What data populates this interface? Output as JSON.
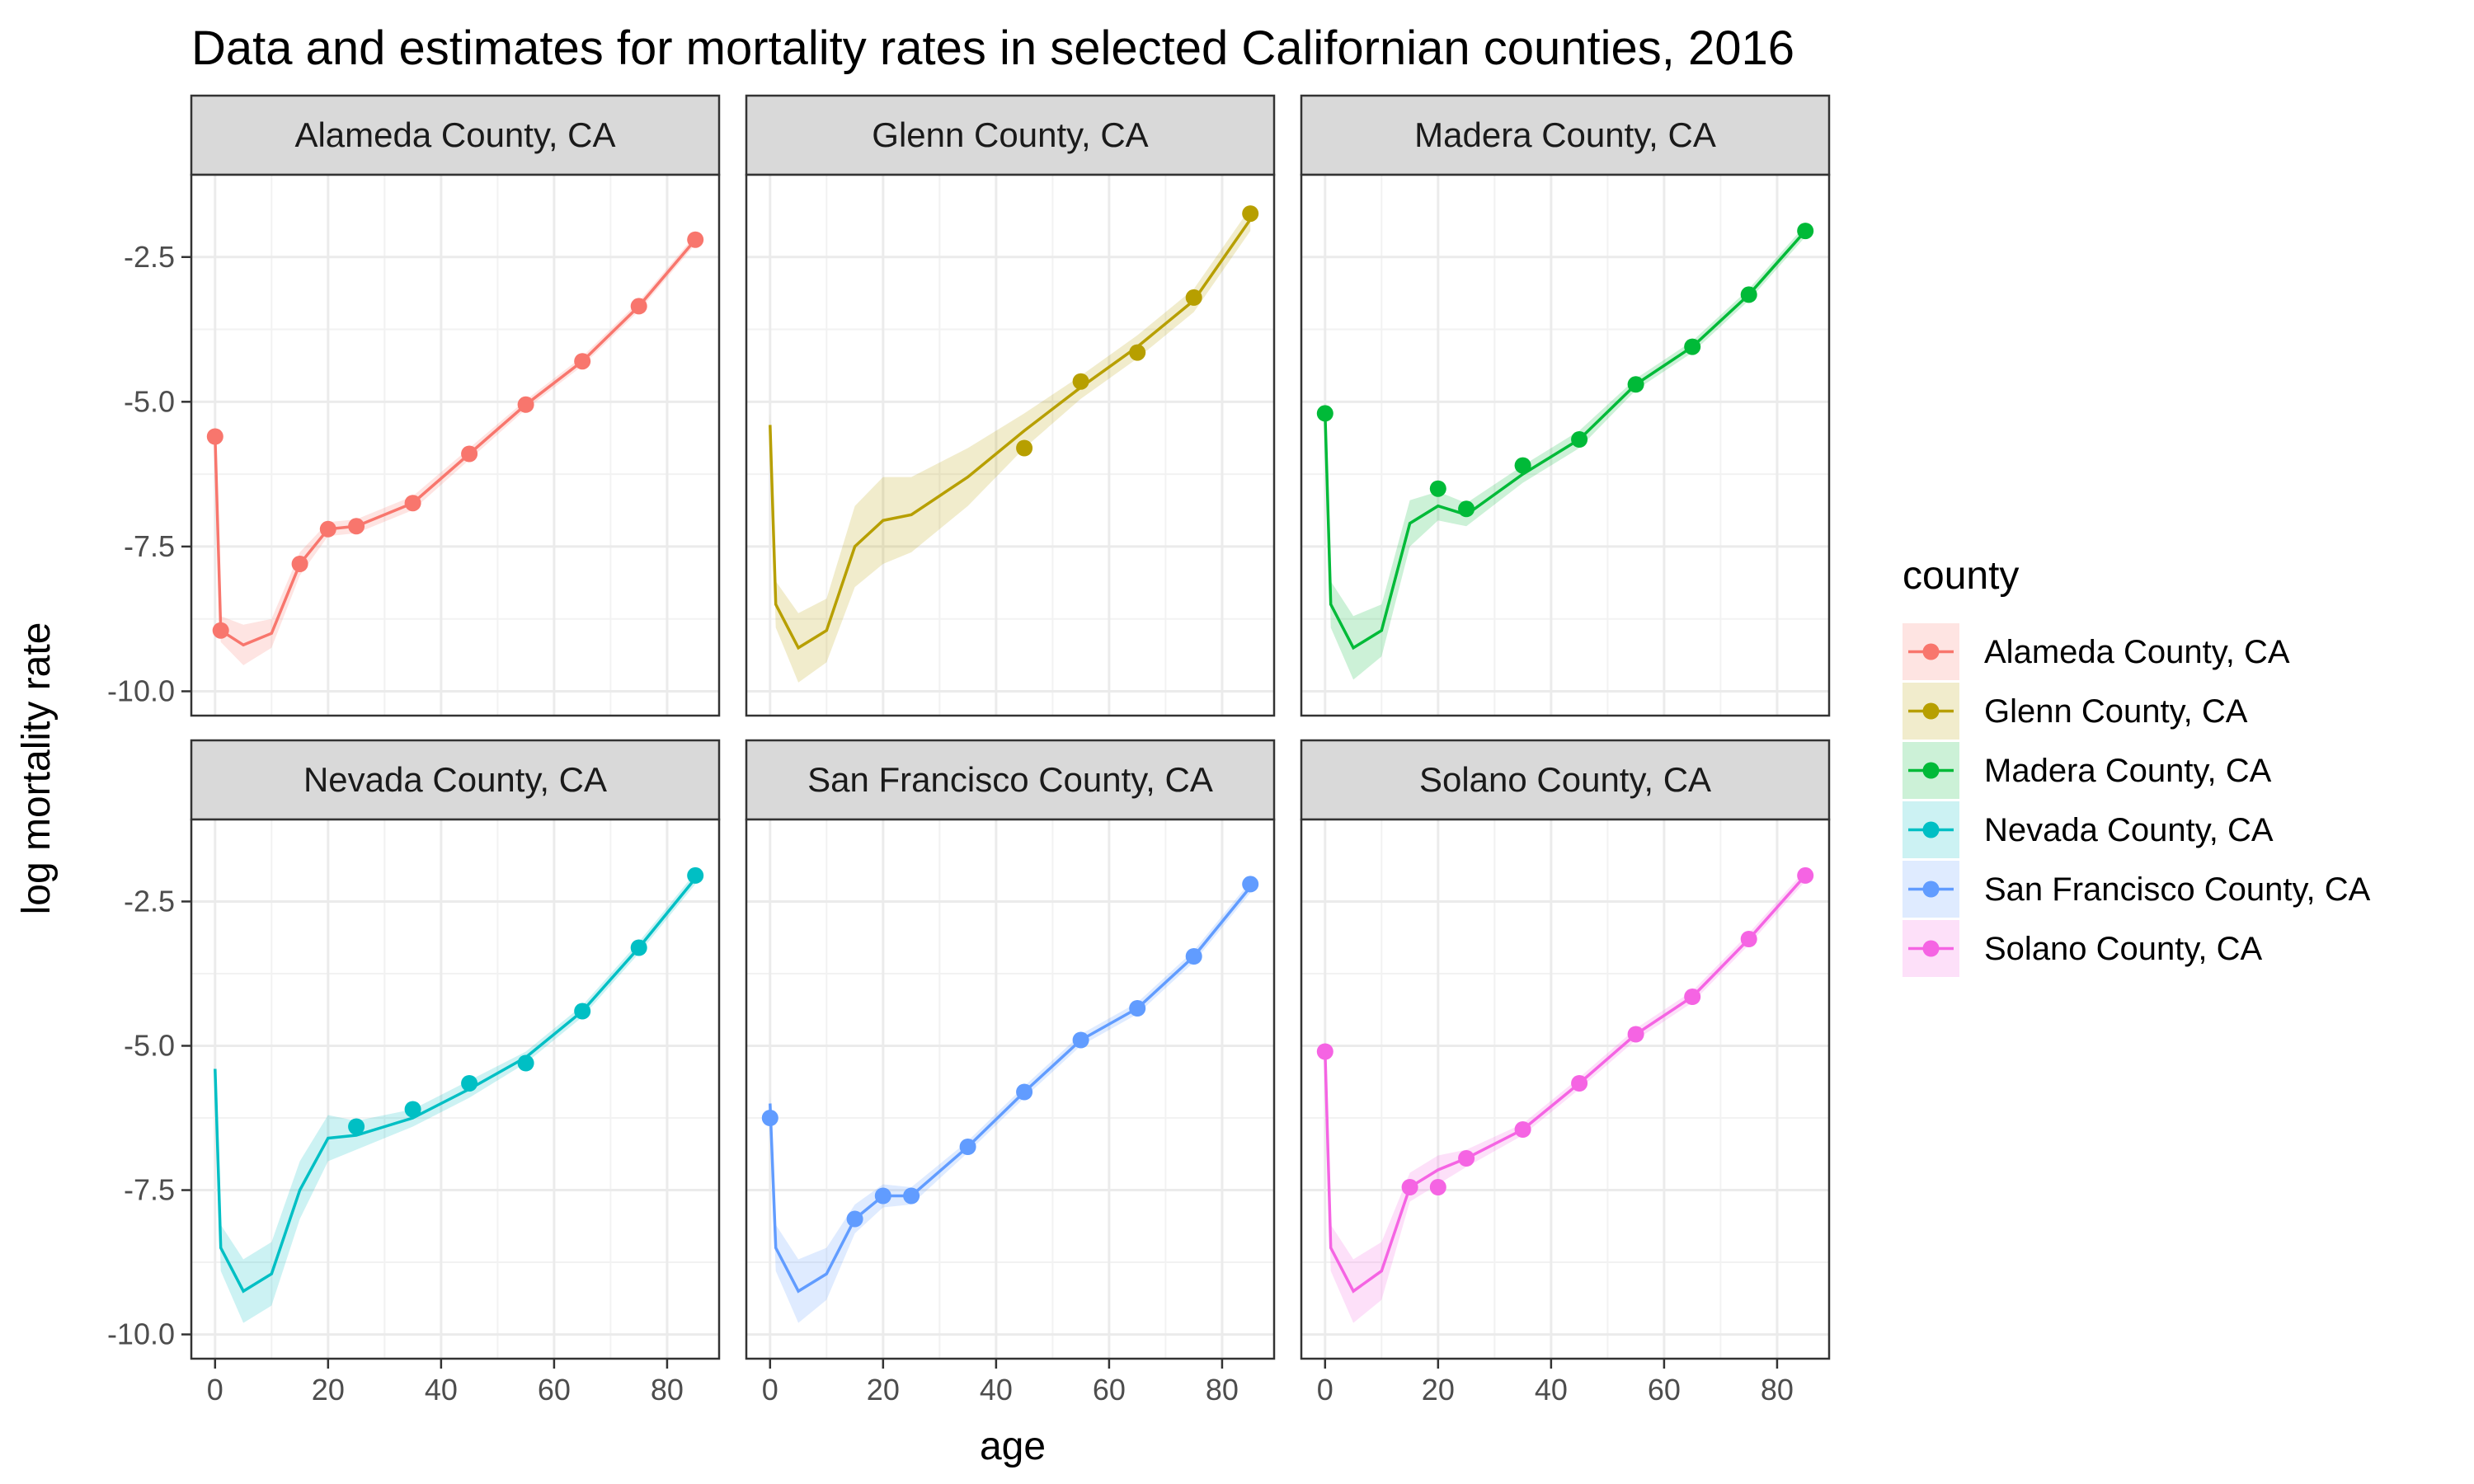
{
  "title": "Data and estimates for mortality rates in selected Californian counties, 2016",
  "chart_data": {
    "type": "line",
    "facet_by": "county",
    "xlabel": "age",
    "ylabel": "log mortality rate",
    "xlim": [
      0,
      85
    ],
    "ylim": [
      -10,
      -1.5
    ],
    "xticks": [
      0,
      20,
      40,
      60,
      80
    ],
    "yticks": [
      -10,
      -7.5,
      -5,
      -2.5
    ],
    "ytick_labels": [
      "-10.0",
      "-7.5",
      "-5.0",
      "-2.5"
    ],
    "grid": true,
    "legend": {
      "title": "county",
      "position": "right"
    },
    "estimate_ages": [
      0,
      1,
      5,
      10,
      15,
      20,
      25,
      35,
      45,
      55,
      65,
      75,
      85
    ],
    "series": [
      {
        "name": "Alameda County, CA",
        "color": "#F8766D",
        "estimate": [
          -5.6,
          -8.95,
          -9.2,
          -9.0,
          -7.8,
          -7.2,
          -7.15,
          -6.75,
          -5.9,
          -5.05,
          -4.3,
          -3.35,
          -2.2
        ],
        "lower": [
          -5.7,
          -9.15,
          -9.55,
          -9.25,
          -8.0,
          -7.32,
          -7.27,
          -6.87,
          -6.0,
          -5.13,
          -4.38,
          -3.43,
          -2.28
        ],
        "upper": [
          -5.5,
          -8.7,
          -8.85,
          -8.75,
          -7.6,
          -7.08,
          -7.03,
          -6.63,
          -5.8,
          -4.97,
          -4.22,
          -3.27,
          -2.12
        ],
        "observed": [
          [
            0,
            -5.6
          ],
          [
            1,
            -8.95
          ],
          [
            15,
            -7.8
          ],
          [
            20,
            -7.2
          ],
          [
            25,
            -7.15
          ],
          [
            35,
            -6.75
          ],
          [
            45,
            -5.9
          ],
          [
            55,
            -5.05
          ],
          [
            65,
            -4.3
          ],
          [
            75,
            -3.35
          ],
          [
            85,
            -2.2
          ]
        ]
      },
      {
        "name": "Glenn County, CA",
        "color": "#B79F00",
        "estimate": [
          -5.4,
          -8.5,
          -9.25,
          -8.95,
          -7.5,
          -7.05,
          -6.95,
          -6.3,
          -5.5,
          -4.75,
          -4.05,
          -3.25,
          -1.85
        ],
        "lower": [
          -5.6,
          -8.9,
          -9.85,
          -9.5,
          -8.2,
          -7.8,
          -7.6,
          -6.8,
          -5.8,
          -4.95,
          -4.25,
          -3.45,
          -2.05
        ],
        "upper": [
          -5.2,
          -8.1,
          -8.65,
          -8.4,
          -6.8,
          -6.3,
          -6.3,
          -5.8,
          -5.2,
          -4.55,
          -3.85,
          -3.05,
          -1.65
        ],
        "observed": [
          [
            45,
            -5.8
          ],
          [
            55,
            -4.65
          ],
          [
            65,
            -4.15
          ],
          [
            75,
            -3.2
          ],
          [
            85,
            -1.75
          ]
        ]
      },
      {
        "name": "Madera County, CA",
        "color": "#00BA38",
        "estimate": [
          -5.2,
          -8.5,
          -9.25,
          -8.95,
          -7.1,
          -6.8,
          -6.95,
          -6.25,
          -5.65,
          -4.7,
          -4.05,
          -3.15,
          -2.05
        ],
        "lower": [
          -5.3,
          -8.9,
          -9.8,
          -9.4,
          -7.5,
          -7.05,
          -7.15,
          -6.4,
          -5.8,
          -4.8,
          -4.15,
          -3.25,
          -2.15
        ],
        "upper": [
          -5.1,
          -8.1,
          -8.7,
          -8.5,
          -6.7,
          -6.55,
          -6.75,
          -6.1,
          -5.5,
          -4.6,
          -3.95,
          -3.05,
          -1.95
        ],
        "observed": [
          [
            0,
            -5.2
          ],
          [
            20,
            -6.5
          ],
          [
            25,
            -6.85
          ],
          [
            35,
            -6.1
          ],
          [
            45,
            -5.65
          ],
          [
            55,
            -4.7
          ],
          [
            65,
            -4.05
          ],
          [
            75,
            -3.15
          ],
          [
            85,
            -2.05
          ]
        ]
      },
      {
        "name": "Nevada County, CA",
        "color": "#00BFC4",
        "estimate": [
          -5.4,
          -8.5,
          -9.25,
          -8.95,
          -7.5,
          -6.6,
          -6.55,
          -6.25,
          -5.75,
          -5.2,
          -4.4,
          -3.3,
          -2.1
        ],
        "lower": [
          -5.5,
          -8.9,
          -9.8,
          -9.5,
          -8.0,
          -7.0,
          -6.8,
          -6.4,
          -5.9,
          -5.3,
          -4.5,
          -3.4,
          -2.2
        ],
        "upper": [
          -5.3,
          -8.1,
          -8.7,
          -8.4,
          -7.0,
          -6.2,
          -6.3,
          -6.1,
          -5.6,
          -5.1,
          -4.3,
          -3.2,
          -2.0
        ],
        "observed": [
          [
            25,
            -6.4
          ],
          [
            35,
            -6.1
          ],
          [
            45,
            -5.65
          ],
          [
            55,
            -5.3
          ],
          [
            65,
            -4.4
          ],
          [
            75,
            -3.3
          ],
          [
            85,
            -2.05
          ]
        ]
      },
      {
        "name": "San Francisco County, CA",
        "color": "#619CFF",
        "estimate": [
          -6.0,
          -8.5,
          -9.25,
          -8.95,
          -8.0,
          -7.6,
          -7.6,
          -6.75,
          -5.8,
          -4.9,
          -4.35,
          -3.45,
          -2.25
        ],
        "lower": [
          -6.2,
          -8.9,
          -9.8,
          -9.4,
          -8.25,
          -7.8,
          -7.75,
          -6.85,
          -5.9,
          -5.0,
          -4.45,
          -3.55,
          -2.35
        ],
        "upper": [
          -5.8,
          -8.1,
          -8.7,
          -8.5,
          -7.75,
          -7.4,
          -7.45,
          -6.65,
          -5.7,
          -4.8,
          -4.25,
          -3.35,
          -2.15
        ],
        "observed": [
          [
            0,
            -6.25
          ],
          [
            15,
            -8.0
          ],
          [
            20,
            -7.6
          ],
          [
            25,
            -7.6
          ],
          [
            35,
            -6.75
          ],
          [
            45,
            -5.8
          ],
          [
            55,
            -4.9
          ],
          [
            65,
            -4.35
          ],
          [
            75,
            -3.45
          ],
          [
            85,
            -2.2
          ]
        ]
      },
      {
        "name": "Solano County, CA",
        "color": "#F564E3",
        "estimate": [
          -5.1,
          -8.5,
          -9.25,
          -8.9,
          -7.45,
          -7.15,
          -6.95,
          -6.45,
          -5.65,
          -4.8,
          -4.15,
          -3.15,
          -2.05
        ],
        "lower": [
          -5.2,
          -8.9,
          -9.8,
          -9.4,
          -7.7,
          -7.4,
          -7.1,
          -6.55,
          -5.75,
          -4.9,
          -4.25,
          -3.25,
          -2.15
        ],
        "upper": [
          -5.0,
          -8.1,
          -8.7,
          -8.4,
          -7.2,
          -6.9,
          -6.8,
          -6.35,
          -5.55,
          -4.7,
          -4.05,
          -3.05,
          -1.95
        ],
        "observed": [
          [
            0,
            -5.1
          ],
          [
            15,
            -7.45
          ],
          [
            20,
            -7.45
          ],
          [
            25,
            -6.95
          ],
          [
            35,
            -6.45
          ],
          [
            45,
            -5.65
          ],
          [
            55,
            -4.8
          ],
          [
            65,
            -4.15
          ],
          [
            75,
            -3.15
          ],
          [
            85,
            -2.05
          ]
        ]
      }
    ]
  }
}
